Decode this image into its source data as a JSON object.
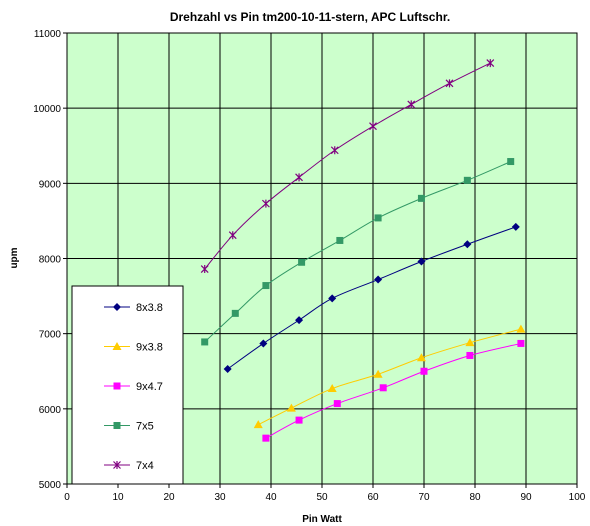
{
  "chart_data": {
    "type": "line",
    "title": "Drehzahl vs Pin tm200-10-11-stern, APC Luftschr.",
    "xlabel": "Pin Watt",
    "ylabel": "upm",
    "xlim": [
      0,
      100
    ],
    "ylim": [
      5000,
      11000
    ],
    "x_ticks": [
      0,
      10,
      20,
      30,
      40,
      50,
      60,
      70,
      80,
      90,
      100
    ],
    "y_ticks": [
      5000,
      6000,
      7000,
      8000,
      9000,
      10000,
      11000
    ],
    "grid": true,
    "legend_position": "left",
    "plot_background": "#ccffcc",
    "series": [
      {
        "name": "8x3.8",
        "color": "#000080",
        "marker": "diamond",
        "points": [
          [
            31.5,
            6530
          ],
          [
            38.5,
            6870
          ],
          [
            45.5,
            7180
          ],
          [
            52,
            7470
          ],
          [
            61,
            7720
          ],
          [
            69.5,
            7960
          ],
          [
            78.5,
            8190
          ],
          [
            88,
            8420
          ]
        ]
      },
      {
        "name": "9x3.8",
        "color": "#ffcc00",
        "marker": "triangle",
        "points": [
          [
            37.5,
            5790
          ],
          [
            44,
            6010
          ],
          [
            52,
            6270
          ],
          [
            61,
            6460
          ],
          [
            69.5,
            6680
          ],
          [
            79,
            6880
          ],
          [
            89,
            7060
          ]
        ]
      },
      {
        "name": "9x4.7",
        "color": "#ff00ff",
        "marker": "square",
        "points": [
          [
            39,
            5610
          ],
          [
            45.5,
            5850
          ],
          [
            53,
            6070
          ],
          [
            62,
            6280
          ],
          [
            70,
            6500
          ],
          [
            79,
            6710
          ],
          [
            89,
            6870
          ]
        ]
      },
      {
        "name": "7x5",
        "color": "#339966",
        "marker": "square",
        "points": [
          [
            27,
            6890
          ],
          [
            33,
            7270
          ],
          [
            39,
            7640
          ],
          [
            46,
            7950
          ],
          [
            53.5,
            8240
          ],
          [
            61,
            8540
          ],
          [
            69.5,
            8800
          ],
          [
            78.5,
            9040
          ],
          [
            87,
            9290
          ]
        ]
      },
      {
        "name": "7x4",
        "color": "#800080",
        "marker": "star",
        "points": [
          [
            27,
            7860
          ],
          [
            32.5,
            8310
          ],
          [
            39,
            8730
          ],
          [
            45.5,
            9080
          ],
          [
            52.5,
            9440
          ],
          [
            60,
            9760
          ],
          [
            67.5,
            10050
          ],
          [
            75,
            10330
          ],
          [
            83,
            10600
          ]
        ]
      }
    ]
  }
}
